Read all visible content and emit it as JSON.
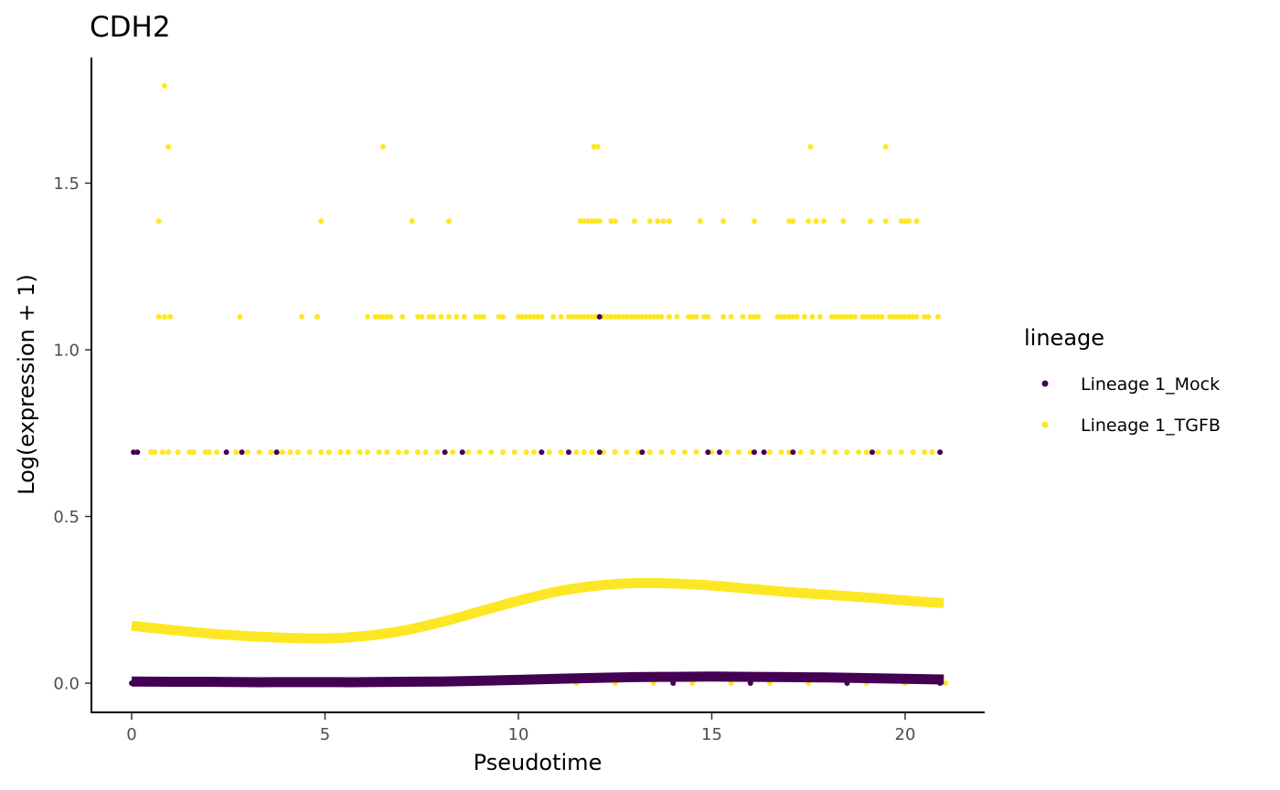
{
  "chart_data": {
    "type": "scatter",
    "title": "CDH2",
    "xlabel": "Pseudotime",
    "ylabel": "Log(expression + 1)",
    "xlim": [
      -1,
      22
    ],
    "ylim": [
      -0.09,
      1.88
    ],
    "xticks": [
      0,
      5,
      10,
      15,
      20
    ],
    "xtick_labels": [
      "0",
      "5",
      "10",
      "15",
      "20"
    ],
    "yticks": [
      0.0,
      0.5,
      1.0,
      1.5
    ],
    "ytick_labels": [
      "0.0",
      "0.5",
      "1.0",
      "1.5"
    ],
    "grid": false,
    "legend": {
      "title": "lineage",
      "placement": "right",
      "entries": [
        "Lineage 1_Mock",
        "Lineage 1_TGFB"
      ]
    },
    "colors": {
      "Lineage 1_Mock": "#440154",
      "Lineage 1_TGFB": "#FDE725"
    },
    "series": [
      {
        "name": "Lineage 1_Mock",
        "color": "#440154",
        "points": [
          [
            0.0,
            0.0
          ],
          [
            0.05,
            0.693
          ],
          [
            0.15,
            0.693
          ],
          [
            2.45,
            0.693
          ],
          [
            2.85,
            0.693
          ],
          [
            3.75,
            0.693
          ],
          [
            8.1,
            0.693
          ],
          [
            8.55,
            0.693
          ],
          [
            10.6,
            0.693
          ],
          [
            11.3,
            0.693
          ],
          [
            12.1,
            1.099
          ],
          [
            12.1,
            0.693
          ],
          [
            13.2,
            0.693
          ],
          [
            14.9,
            0.693
          ],
          [
            15.2,
            0.693
          ],
          [
            16.1,
            0.693
          ],
          [
            16.35,
            0.693
          ],
          [
            17.1,
            0.693
          ],
          [
            19.15,
            0.693
          ],
          [
            20.9,
            0.693
          ],
          [
            14.0,
            0.0
          ],
          [
            16.0,
            0.0
          ],
          [
            18.5,
            0.0
          ],
          [
            20.9,
            0.0
          ]
        ],
        "fitted": {
          "x": [
            0,
            1,
            2,
            3,
            4,
            5,
            6,
            7,
            8,
            9,
            10,
            11,
            12,
            13,
            14,
            15,
            16,
            17,
            18,
            19,
            20,
            21
          ],
          "y": [
            0.005,
            0.004,
            0.004,
            0.003,
            0.003,
            0.003,
            0.003,
            0.004,
            0.005,
            0.007,
            0.01,
            0.013,
            0.016,
            0.018,
            0.019,
            0.02,
            0.019,
            0.018,
            0.017,
            0.015,
            0.013,
            0.011
          ]
        }
      },
      {
        "name": "Lineage 1_TGFB",
        "color": "#FDE725",
        "points": [
          [
            0.85,
            1.792
          ],
          [
            0.95,
            1.609
          ],
          [
            6.5,
            1.609
          ],
          [
            11.95,
            1.609
          ],
          [
            12.05,
            1.609
          ],
          [
            17.55,
            1.609
          ],
          [
            19.5,
            1.609
          ],
          [
            0.7,
            1.386
          ],
          [
            4.9,
            1.386
          ],
          [
            7.25,
            1.386
          ],
          [
            8.2,
            1.386
          ],
          [
            11.6,
            1.386
          ],
          [
            11.7,
            1.386
          ],
          [
            11.8,
            1.386
          ],
          [
            11.9,
            1.386
          ],
          [
            12.0,
            1.386
          ],
          [
            12.1,
            1.386
          ],
          [
            12.4,
            1.386
          ],
          [
            12.5,
            1.386
          ],
          [
            13.0,
            1.386
          ],
          [
            13.4,
            1.386
          ],
          [
            13.6,
            1.386
          ],
          [
            13.75,
            1.386
          ],
          [
            13.9,
            1.386
          ],
          [
            14.7,
            1.386
          ],
          [
            15.3,
            1.386
          ],
          [
            16.1,
            1.386
          ],
          [
            17.0,
            1.386
          ],
          [
            17.1,
            1.386
          ],
          [
            17.5,
            1.386
          ],
          [
            17.7,
            1.386
          ],
          [
            17.9,
            1.386
          ],
          [
            18.4,
            1.386
          ],
          [
            19.1,
            1.386
          ],
          [
            19.5,
            1.386
          ],
          [
            19.9,
            1.386
          ],
          [
            20.0,
            1.386
          ],
          [
            20.1,
            1.386
          ],
          [
            20.3,
            1.386
          ],
          [
            0.7,
            1.099
          ],
          [
            0.85,
            1.099
          ],
          [
            1.0,
            1.099
          ],
          [
            2.8,
            1.099
          ],
          [
            4.4,
            1.099
          ],
          [
            4.8,
            1.099
          ],
          [
            6.1,
            1.099
          ],
          [
            6.3,
            1.099
          ],
          [
            6.4,
            1.099
          ],
          [
            6.5,
            1.099
          ],
          [
            6.6,
            1.099
          ],
          [
            6.7,
            1.099
          ],
          [
            7.0,
            1.099
          ],
          [
            7.4,
            1.099
          ],
          [
            7.5,
            1.099
          ],
          [
            7.7,
            1.099
          ],
          [
            7.8,
            1.099
          ],
          [
            8.0,
            1.099
          ],
          [
            8.2,
            1.099
          ],
          [
            8.4,
            1.099
          ],
          [
            8.6,
            1.099
          ],
          [
            8.9,
            1.099
          ],
          [
            9.0,
            1.099
          ],
          [
            9.1,
            1.099
          ],
          [
            9.5,
            1.099
          ],
          [
            9.6,
            1.099
          ],
          [
            10.0,
            1.099
          ],
          [
            10.1,
            1.099
          ],
          [
            10.2,
            1.099
          ],
          [
            10.3,
            1.099
          ],
          [
            10.4,
            1.099
          ],
          [
            10.5,
            1.099
          ],
          [
            10.6,
            1.099
          ],
          [
            10.9,
            1.099
          ],
          [
            11.1,
            1.099
          ],
          [
            11.3,
            1.099
          ],
          [
            11.4,
            1.099
          ],
          [
            11.5,
            1.099
          ],
          [
            11.6,
            1.099
          ],
          [
            11.7,
            1.099
          ],
          [
            11.8,
            1.099
          ],
          [
            11.9,
            1.099
          ],
          [
            12.0,
            1.099
          ],
          [
            12.2,
            1.099
          ],
          [
            12.3,
            1.099
          ],
          [
            12.4,
            1.099
          ],
          [
            12.5,
            1.099
          ],
          [
            12.6,
            1.099
          ],
          [
            12.7,
            1.099
          ],
          [
            12.8,
            1.099
          ],
          [
            12.9,
            1.099
          ],
          [
            13.0,
            1.099
          ],
          [
            13.1,
            1.099
          ],
          [
            13.2,
            1.099
          ],
          [
            13.3,
            1.099
          ],
          [
            13.4,
            1.099
          ],
          [
            13.5,
            1.099
          ],
          [
            13.6,
            1.099
          ],
          [
            13.7,
            1.099
          ],
          [
            13.9,
            1.099
          ],
          [
            14.1,
            1.099
          ],
          [
            14.4,
            1.099
          ],
          [
            14.5,
            1.099
          ],
          [
            14.6,
            1.099
          ],
          [
            14.8,
            1.099
          ],
          [
            14.9,
            1.099
          ],
          [
            15.3,
            1.099
          ],
          [
            15.5,
            1.099
          ],
          [
            15.8,
            1.099
          ],
          [
            16.0,
            1.099
          ],
          [
            16.1,
            1.099
          ],
          [
            16.2,
            1.099
          ],
          [
            16.7,
            1.099
          ],
          [
            16.8,
            1.099
          ],
          [
            16.9,
            1.099
          ],
          [
            17.0,
            1.099
          ],
          [
            17.1,
            1.099
          ],
          [
            17.2,
            1.099
          ],
          [
            17.4,
            1.099
          ],
          [
            17.6,
            1.099
          ],
          [
            17.8,
            1.099
          ],
          [
            18.1,
            1.099
          ],
          [
            18.2,
            1.099
          ],
          [
            18.3,
            1.099
          ],
          [
            18.4,
            1.099
          ],
          [
            18.5,
            1.099
          ],
          [
            18.6,
            1.099
          ],
          [
            18.7,
            1.099
          ],
          [
            18.9,
            1.099
          ],
          [
            19.0,
            1.099
          ],
          [
            19.1,
            1.099
          ],
          [
            19.2,
            1.099
          ],
          [
            19.3,
            1.099
          ],
          [
            19.4,
            1.099
          ],
          [
            19.6,
            1.099
          ],
          [
            19.7,
            1.099
          ],
          [
            19.8,
            1.099
          ],
          [
            19.9,
            1.099
          ],
          [
            20.0,
            1.099
          ],
          [
            20.1,
            1.099
          ],
          [
            20.2,
            1.099
          ],
          [
            20.3,
            1.099
          ],
          [
            20.5,
            1.099
          ],
          [
            20.6,
            1.099
          ],
          [
            20.85,
            1.099
          ],
          [
            0.5,
            0.693
          ],
          [
            0.6,
            0.693
          ],
          [
            0.8,
            0.693
          ],
          [
            0.95,
            0.693
          ],
          [
            1.2,
            0.693
          ],
          [
            1.5,
            0.693
          ],
          [
            1.6,
            0.693
          ],
          [
            1.9,
            0.693
          ],
          [
            2.0,
            0.693
          ],
          [
            2.2,
            0.693
          ],
          [
            2.7,
            0.693
          ],
          [
            3.0,
            0.693
          ],
          [
            3.3,
            0.693
          ],
          [
            3.6,
            0.693
          ],
          [
            3.9,
            0.693
          ],
          [
            4.1,
            0.693
          ],
          [
            4.3,
            0.693
          ],
          [
            4.6,
            0.693
          ],
          [
            4.9,
            0.693
          ],
          [
            5.1,
            0.693
          ],
          [
            5.4,
            0.693
          ],
          [
            5.6,
            0.693
          ],
          [
            5.9,
            0.693
          ],
          [
            6.1,
            0.693
          ],
          [
            6.4,
            0.693
          ],
          [
            6.6,
            0.693
          ],
          [
            6.9,
            0.693
          ],
          [
            7.1,
            0.693
          ],
          [
            7.4,
            0.693
          ],
          [
            7.6,
            0.693
          ],
          [
            7.9,
            0.693
          ],
          [
            8.3,
            0.693
          ],
          [
            8.7,
            0.693
          ],
          [
            9.0,
            0.693
          ],
          [
            9.3,
            0.693
          ],
          [
            9.6,
            0.693
          ],
          [
            9.9,
            0.693
          ],
          [
            10.2,
            0.693
          ],
          [
            10.4,
            0.693
          ],
          [
            10.8,
            0.693
          ],
          [
            11.1,
            0.693
          ],
          [
            11.5,
            0.693
          ],
          [
            11.7,
            0.693
          ],
          [
            11.9,
            0.693
          ],
          [
            12.2,
            0.693
          ],
          [
            12.5,
            0.693
          ],
          [
            12.8,
            0.693
          ],
          [
            13.1,
            0.693
          ],
          [
            13.4,
            0.693
          ],
          [
            13.7,
            0.693
          ],
          [
            14.0,
            0.693
          ],
          [
            14.3,
            0.693
          ],
          [
            14.6,
            0.693
          ],
          [
            15.0,
            0.693
          ],
          [
            15.4,
            0.693
          ],
          [
            15.7,
            0.693
          ],
          [
            16.0,
            0.693
          ],
          [
            16.5,
            0.693
          ],
          [
            16.8,
            0.693
          ],
          [
            17.0,
            0.693
          ],
          [
            17.3,
            0.693
          ],
          [
            17.6,
            0.693
          ],
          [
            17.9,
            0.693
          ],
          [
            18.2,
            0.693
          ],
          [
            18.5,
            0.693
          ],
          [
            18.8,
            0.693
          ],
          [
            19.0,
            0.693
          ],
          [
            19.3,
            0.693
          ],
          [
            19.6,
            0.693
          ],
          [
            19.9,
            0.693
          ],
          [
            20.2,
            0.693
          ],
          [
            20.5,
            0.693
          ],
          [
            20.7,
            0.693
          ],
          [
            20.9,
            0.693
          ],
          [
            11.5,
            0.0
          ],
          [
            12.5,
            0.0
          ],
          [
            13.5,
            0.0
          ],
          [
            14.5,
            0.0
          ],
          [
            15.5,
            0.0
          ],
          [
            16.5,
            0.0
          ],
          [
            17.5,
            0.0
          ],
          [
            19.0,
            0.0
          ],
          [
            20.0,
            0.0
          ],
          [
            21.05,
            0.0
          ]
        ],
        "fitted": {
          "x": [
            0,
            1,
            2,
            3,
            4,
            5,
            6,
            7,
            8,
            9,
            10,
            11,
            12,
            13,
            14,
            15,
            16,
            17,
            18,
            19,
            20,
            21
          ],
          "y": [
            0.172,
            0.16,
            0.149,
            0.141,
            0.136,
            0.134,
            0.141,
            0.157,
            0.183,
            0.215,
            0.247,
            0.275,
            0.292,
            0.3,
            0.299,
            0.293,
            0.283,
            0.273,
            0.265,
            0.257,
            0.248,
            0.24
          ]
        }
      }
    ]
  }
}
